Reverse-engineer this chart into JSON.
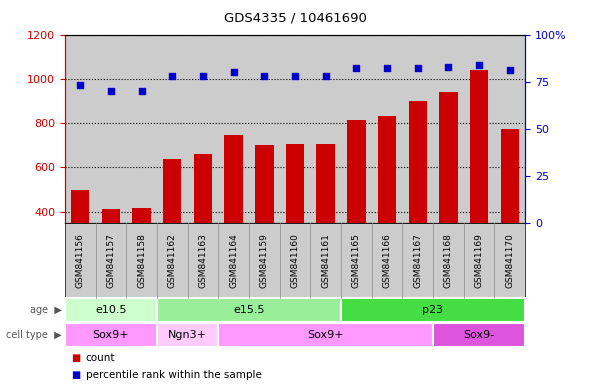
{
  "title": "GDS4335 / 10461690",
  "samples": [
    "GSM841156",
    "GSM841157",
    "GSM841158",
    "GSM841162",
    "GSM841163",
    "GSM841164",
    "GSM841159",
    "GSM841160",
    "GSM841161",
    "GSM841165",
    "GSM841166",
    "GSM841167",
    "GSM841168",
    "GSM841169",
    "GSM841170"
  ],
  "counts": [
    500,
    410,
    415,
    640,
    660,
    745,
    700,
    705,
    705,
    815,
    830,
    900,
    940,
    1040,
    775
  ],
  "percentile_ranks": [
    73,
    70,
    70,
    78,
    78,
    80,
    78,
    78,
    78,
    82,
    82,
    82,
    83,
    84,
    81
  ],
  "ylim_left": [
    350,
    1200
  ],
  "ylim_right": [
    0,
    100
  ],
  "yticks_left": [
    400,
    600,
    800,
    1000,
    1200
  ],
  "yticks_right": [
    0,
    25,
    50,
    75,
    100
  ],
  "age_groups": [
    {
      "label": "e10.5",
      "start": 0,
      "end": 3,
      "color": "#ccffcc"
    },
    {
      "label": "e15.5",
      "start": 3,
      "end": 9,
      "color": "#99ee99"
    },
    {
      "label": "p23",
      "start": 9,
      "end": 15,
      "color": "#44dd44"
    }
  ],
  "cell_type_groups": [
    {
      "label": "Sox9+",
      "start": 0,
      "end": 3,
      "color": "#ff99ff"
    },
    {
      "label": "Ngn3+",
      "start": 3,
      "end": 5,
      "color": "#ffccff"
    },
    {
      "label": "Sox9+",
      "start": 5,
      "end": 12,
      "color": "#ff99ff"
    },
    {
      "label": "Sox9-",
      "start": 12,
      "end": 15,
      "color": "#dd55dd"
    }
  ],
  "bar_color": "#cc0000",
  "scatter_color": "#0000cc",
  "grid_color": "#555555",
  "bg_color": "#ffffff",
  "tick_area_color": "#cccccc",
  "left_axis_color": "#cc0000",
  "right_axis_color": "#0000cc",
  "age_label_color": "#555555",
  "cell_label_color": "#555555"
}
